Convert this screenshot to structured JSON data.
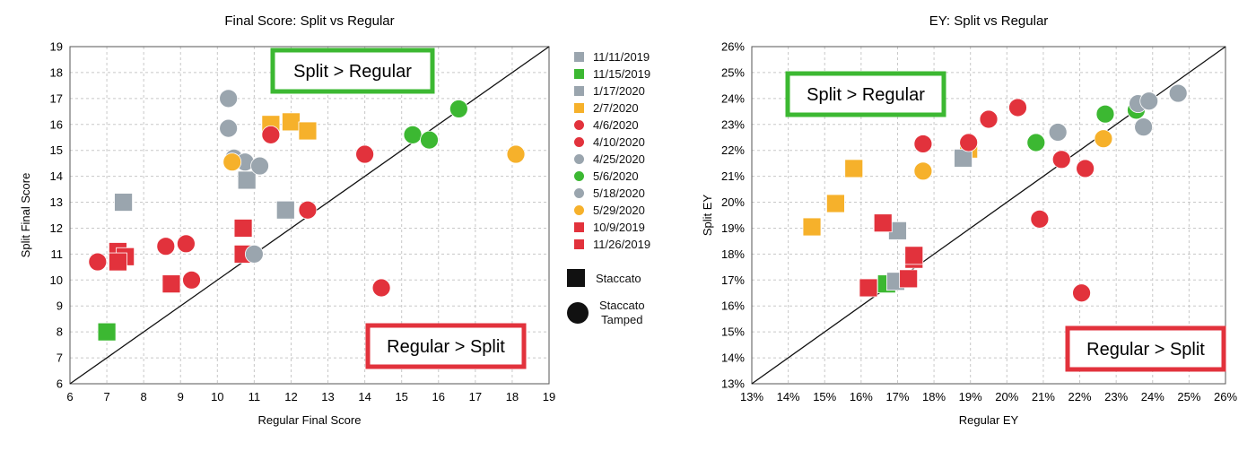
{
  "legend": {
    "items": [
      {
        "label": "11/11/2019",
        "color": "#9aa5ae",
        "shape": "square"
      },
      {
        "label": "11/15/2019",
        "color": "#3cb832",
        "shape": "square"
      },
      {
        "label": "1/17/2020",
        "color": "#9aa5ae",
        "shape": "square"
      },
      {
        "label": "2/7/2020",
        "color": "#f6b12b",
        "shape": "square"
      },
      {
        "label": "4/6/2020",
        "color": "#e2323c",
        "shape": "circle"
      },
      {
        "label": "4/10/2020",
        "color": "#e2323c",
        "shape": "circle"
      },
      {
        "label": "4/25/2020",
        "color": "#9aa5ae",
        "shape": "circle"
      },
      {
        "label": "5/6/2020",
        "color": "#3cb832",
        "shape": "circle"
      },
      {
        "label": "5/18/2020",
        "color": "#9aa5ae",
        "shape": "circle"
      },
      {
        "label": "5/29/2020",
        "color": "#f6b12b",
        "shape": "circle"
      },
      {
        "label": "10/9/2019",
        "color": "#e2323c",
        "shape": "square"
      },
      {
        "label": "11/26/2019",
        "color": "#e2323c",
        "shape": "square"
      }
    ],
    "shape_key": {
      "square_label": "Staccato",
      "circle_label_line1": "Staccato",
      "circle_label_line2": "Tamped"
    }
  },
  "chart_data": [
    {
      "type": "scatter",
      "title": "Final Score: Split vs Regular",
      "xlabel": "Regular Final Score",
      "ylabel": "Split Final Score",
      "xlim": [
        6,
        19
      ],
      "ylim": [
        6,
        19
      ],
      "xticks": [
        "6",
        "7",
        "8",
        "9",
        "10",
        "11",
        "12",
        "13",
        "14",
        "15",
        "16",
        "17",
        "18",
        "19"
      ],
      "yticks": [
        "6",
        "7",
        "8",
        "9",
        "10",
        "11",
        "12",
        "13",
        "14",
        "15",
        "16",
        "17",
        "18",
        "19"
      ],
      "grid": "dashed",
      "reference_line": "y = x",
      "annotations": {
        "upper_label": "Split > Regular",
        "lower_label": "Regular > Split",
        "upper_color": "#3cb832",
        "lower_color": "#e2323c"
      },
      "points": [
        {
          "x": 7.45,
          "y": 13.0,
          "color": "#9aa5ae",
          "shape": "square"
        },
        {
          "x": 7.0,
          "y": 8.0,
          "color": "#3cb832",
          "shape": "square"
        },
        {
          "x": 11.85,
          "y": 12.7,
          "color": "#9aa5ae",
          "shape": "square"
        },
        {
          "x": 10.8,
          "y": 13.85,
          "color": "#9aa5ae",
          "shape": "square"
        },
        {
          "x": 11.45,
          "y": 16.0,
          "color": "#f6b12b",
          "shape": "square"
        },
        {
          "x": 12.0,
          "y": 16.1,
          "color": "#f6b12b",
          "shape": "square"
        },
        {
          "x": 12.45,
          "y": 15.75,
          "color": "#f6b12b",
          "shape": "square"
        },
        {
          "x": 10.7,
          "y": 12.0,
          "color": "#e2323c",
          "shape": "square"
        },
        {
          "x": 10.7,
          "y": 11.0,
          "color": "#e2323c",
          "shape": "square"
        },
        {
          "x": 7.3,
          "y": 11.1,
          "color": "#e2323c",
          "shape": "square"
        },
        {
          "x": 7.5,
          "y": 10.9,
          "color": "#e2323c",
          "shape": "square"
        },
        {
          "x": 7.3,
          "y": 10.7,
          "color": "#e2323c",
          "shape": "square"
        },
        {
          "x": 8.75,
          "y": 9.85,
          "color": "#e2323c",
          "shape": "square"
        },
        {
          "x": 6.75,
          "y": 10.7,
          "color": "#e2323c",
          "shape": "circle"
        },
        {
          "x": 8.6,
          "y": 11.3,
          "color": "#e2323c",
          "shape": "circle"
        },
        {
          "x": 9.15,
          "y": 11.4,
          "color": "#e2323c",
          "shape": "circle"
        },
        {
          "x": 9.3,
          "y": 10.0,
          "color": "#e2323c",
          "shape": "circle"
        },
        {
          "x": 11.45,
          "y": 15.6,
          "color": "#e2323c",
          "shape": "circle"
        },
        {
          "x": 12.45,
          "y": 12.7,
          "color": "#e2323c",
          "shape": "circle"
        },
        {
          "x": 14.0,
          "y": 14.85,
          "color": "#e2323c",
          "shape": "circle"
        },
        {
          "x": 14.45,
          "y": 9.7,
          "color": "#e2323c",
          "shape": "circle"
        },
        {
          "x": 10.3,
          "y": 17.0,
          "color": "#9aa5ae",
          "shape": "circle"
        },
        {
          "x": 10.3,
          "y": 15.85,
          "color": "#9aa5ae",
          "shape": "circle"
        },
        {
          "x": 10.45,
          "y": 14.7,
          "color": "#9aa5ae",
          "shape": "circle"
        },
        {
          "x": 10.75,
          "y": 14.55,
          "color": "#9aa5ae",
          "shape": "circle"
        },
        {
          "x": 11.15,
          "y": 14.4,
          "color": "#9aa5ae",
          "shape": "circle"
        },
        {
          "x": 11.0,
          "y": 11.0,
          "color": "#9aa5ae",
          "shape": "circle"
        },
        {
          "x": 10.4,
          "y": 14.55,
          "color": "#f6b12b",
          "shape": "circle"
        },
        {
          "x": 18.1,
          "y": 14.85,
          "color": "#f6b12b",
          "shape": "circle"
        },
        {
          "x": 15.3,
          "y": 15.6,
          "color": "#3cb832",
          "shape": "circle"
        },
        {
          "x": 15.75,
          "y": 15.4,
          "color": "#3cb832",
          "shape": "circle"
        },
        {
          "x": 16.55,
          "y": 16.6,
          "color": "#3cb832",
          "shape": "circle"
        }
      ]
    },
    {
      "type": "scatter",
      "title": "EY: Split vs Regular",
      "xlabel": "Regular EY",
      "ylabel": "Split EY",
      "xlim": [
        13,
        26
      ],
      "ylim": [
        13,
        26
      ],
      "xticks": [
        "13%",
        "14%",
        "15%",
        "16%",
        "17%",
        "18%",
        "19%",
        "20%",
        "21%",
        "22%",
        "23%",
        "24%",
        "25%",
        "26%"
      ],
      "yticks": [
        "13%",
        "14%",
        "15%",
        "16%",
        "17%",
        "18%",
        "19%",
        "20%",
        "21%",
        "22%",
        "23%",
        "24%",
        "25%",
        "26%"
      ],
      "grid": "dashed",
      "reference_line": "y = x",
      "annotations": {
        "upper_label": "Split > Regular",
        "lower_label": "Regular > Split",
        "upper_color": "#3cb832",
        "lower_color": "#e2323c"
      },
      "points": [
        {
          "x": 14.65,
          "y": 19.05,
          "color": "#f6b12b",
          "shape": "square"
        },
        {
          "x": 15.3,
          "y": 19.95,
          "color": "#f6b12b",
          "shape": "square"
        },
        {
          "x": 15.8,
          "y": 21.3,
          "color": "#f6b12b",
          "shape": "square"
        },
        {
          "x": 18.95,
          "y": 22.05,
          "color": "#f6b12b",
          "shape": "square"
        },
        {
          "x": 17.0,
          "y": 18.9,
          "color": "#9aa5ae",
          "shape": "square"
        },
        {
          "x": 18.8,
          "y": 21.7,
          "color": "#9aa5ae",
          "shape": "square"
        },
        {
          "x": 16.7,
          "y": 16.85,
          "color": "#3cb832",
          "shape": "square"
        },
        {
          "x": 16.95,
          "y": 16.95,
          "color": "#9aa5ae",
          "shape": "square"
        },
        {
          "x": 16.6,
          "y": 19.2,
          "color": "#e2323c",
          "shape": "square"
        },
        {
          "x": 16.2,
          "y": 16.7,
          "color": "#e2323c",
          "shape": "square"
        },
        {
          "x": 17.3,
          "y": 17.05,
          "color": "#e2323c",
          "shape": "square"
        },
        {
          "x": 17.45,
          "y": 17.8,
          "color": "#e2323c",
          "shape": "square"
        },
        {
          "x": 17.45,
          "y": 17.95,
          "color": "#e2323c",
          "shape": "square"
        },
        {
          "x": 17.7,
          "y": 22.25,
          "color": "#e2323c",
          "shape": "circle"
        },
        {
          "x": 18.95,
          "y": 22.3,
          "color": "#e2323c",
          "shape": "circle"
        },
        {
          "x": 19.5,
          "y": 23.2,
          "color": "#e2323c",
          "shape": "circle"
        },
        {
          "x": 20.3,
          "y": 23.65,
          "color": "#e2323c",
          "shape": "circle"
        },
        {
          "x": 20.9,
          "y": 19.35,
          "color": "#e2323c",
          "shape": "circle"
        },
        {
          "x": 21.5,
          "y": 21.65,
          "color": "#e2323c",
          "shape": "circle"
        },
        {
          "x": 22.15,
          "y": 21.3,
          "color": "#e2323c",
          "shape": "circle"
        },
        {
          "x": 22.05,
          "y": 16.5,
          "color": "#e2323c",
          "shape": "circle"
        },
        {
          "x": 17.7,
          "y": 21.2,
          "color": "#f6b12b",
          "shape": "circle"
        },
        {
          "x": 22.65,
          "y": 22.45,
          "color": "#f6b12b",
          "shape": "circle"
        },
        {
          "x": 20.8,
          "y": 22.3,
          "color": "#3cb832",
          "shape": "circle"
        },
        {
          "x": 22.7,
          "y": 23.4,
          "color": "#3cb832",
          "shape": "circle"
        },
        {
          "x": 23.55,
          "y": 23.55,
          "color": "#3cb832",
          "shape": "circle"
        },
        {
          "x": 21.4,
          "y": 22.7,
          "color": "#9aa5ae",
          "shape": "circle"
        },
        {
          "x": 23.6,
          "y": 23.8,
          "color": "#9aa5ae",
          "shape": "circle"
        },
        {
          "x": 23.9,
          "y": 23.9,
          "color": "#9aa5ae",
          "shape": "circle"
        },
        {
          "x": 24.7,
          "y": 24.2,
          "color": "#9aa5ae",
          "shape": "circle"
        },
        {
          "x": 23.75,
          "y": 22.9,
          "color": "#9aa5ae",
          "shape": "circle"
        }
      ]
    }
  ]
}
